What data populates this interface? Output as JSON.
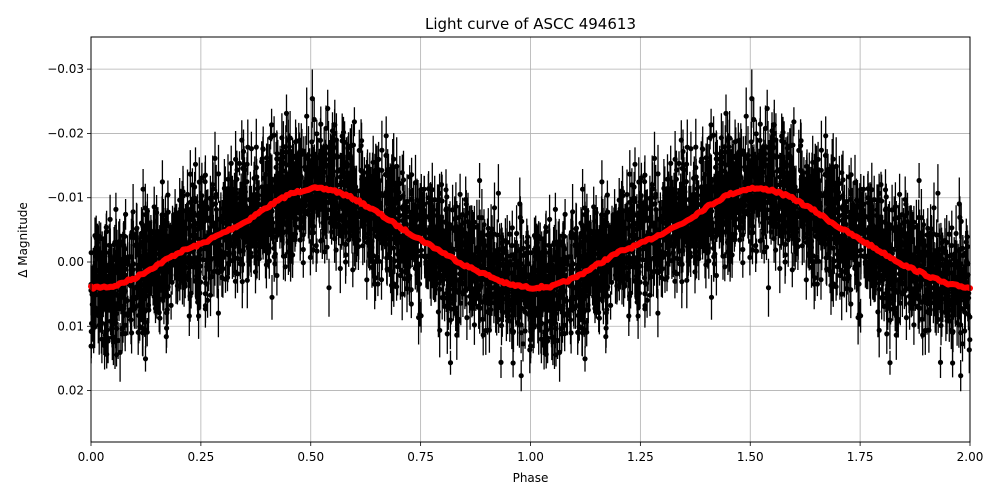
{
  "chart_data": {
    "type": "scatter",
    "title": "Light curve of ASCC 494613",
    "xlabel": "Phase",
    "ylabel": "Δ Magnitude",
    "xlim": [
      0.0,
      2.0
    ],
    "ylim": [
      0.028,
      -0.035
    ],
    "y_inverted": true,
    "grid": true,
    "x_ticks": [
      "0.00",
      "0.25",
      "0.50",
      "0.75",
      "1.00",
      "1.25",
      "1.50",
      "1.75",
      "2.00"
    ],
    "x_tick_values": [
      0.0,
      0.25,
      0.5,
      0.75,
      1.0,
      1.25,
      1.5,
      1.75,
      2.0
    ],
    "y_ticks": [
      "−0.03",
      "−0.02",
      "−0.01",
      "0.00",
      "0.01",
      "0.02"
    ],
    "y_tick_values": [
      -0.03,
      -0.02,
      -0.01,
      0.0,
      0.01,
      0.02
    ],
    "series": [
      {
        "name": "observations",
        "style": "black points with vertical error bars",
        "color": "#000000",
        "scatter_center_range": [
          -0.015,
          0.012
        ],
        "typical_error": 0.003,
        "note": "dense cloud of thousands of points, phase-folded and plotted twice (0–1 and 1–2)"
      },
      {
        "name": "binned curve",
        "style": "thick red line",
        "color": "#ff0000",
        "x": [
          0.0,
          0.05,
          0.1,
          0.15,
          0.2,
          0.25,
          0.3,
          0.35,
          0.4,
          0.45,
          0.5,
          0.55,
          0.6,
          0.65,
          0.7,
          0.75,
          0.8,
          0.85,
          0.9,
          0.95,
          1.0,
          1.05,
          1.1,
          1.15,
          1.2,
          1.25,
          1.3,
          1.35,
          1.4,
          1.45,
          1.5,
          1.55,
          1.6,
          1.65,
          1.7,
          1.75,
          1.8,
          1.85,
          1.9,
          1.95,
          2.0
        ],
        "y": [
          0.004,
          0.0038,
          0.0025,
          0.0005,
          -0.0015,
          -0.0028,
          -0.0045,
          -0.0062,
          -0.0085,
          -0.0105,
          -0.0115,
          -0.0112,
          -0.0098,
          -0.0078,
          -0.0055,
          -0.0035,
          -0.0015,
          0.0005,
          0.002,
          0.0035,
          0.004,
          0.0038,
          0.0025,
          0.0005,
          -0.0015,
          -0.0028,
          -0.0045,
          -0.0062,
          -0.0085,
          -0.0105,
          -0.0115,
          -0.0112,
          -0.0098,
          -0.0078,
          -0.0055,
          -0.0035,
          -0.0015,
          0.0005,
          0.002,
          0.0035,
          0.004
        ]
      }
    ]
  }
}
